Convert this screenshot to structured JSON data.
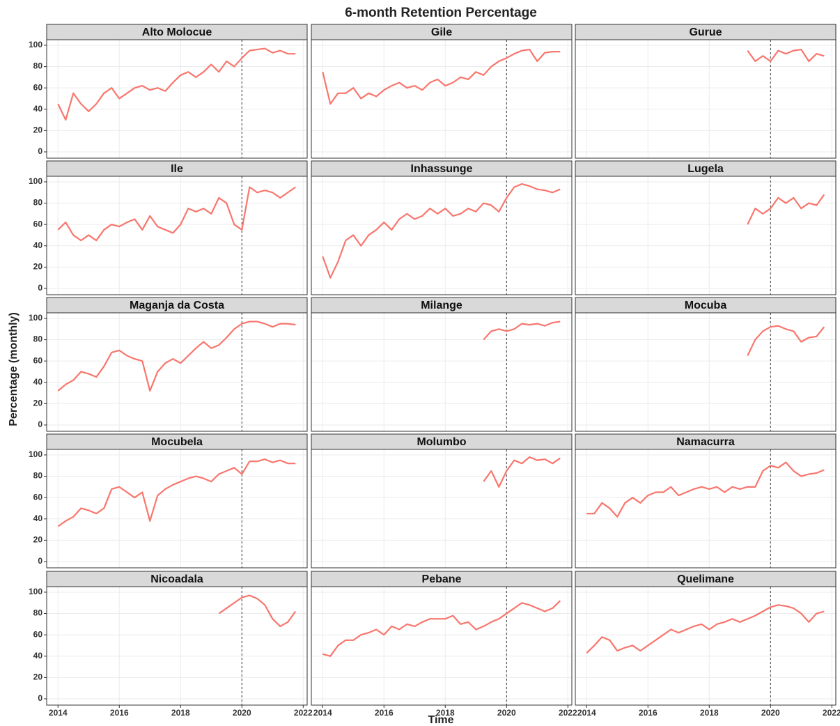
{
  "title": "6-month Retention Percentage",
  "x_label": "Time",
  "y_label": "Percentage (monthly)",
  "chart_data": [
    {
      "type": "line",
      "title": "Alto Molocue",
      "x": [
        2014,
        2014.25,
        2014.5,
        2014.75,
        2015,
        2015.25,
        2015.5,
        2015.75,
        2016,
        2016.25,
        2016.5,
        2016.75,
        2017,
        2017.25,
        2017.5,
        2017.75,
        2018,
        2018.25,
        2018.5,
        2018.75,
        2019,
        2019.25,
        2019.5,
        2019.75,
        2020,
        2020.25,
        2020.5,
        2020.75,
        2021,
        2021.25,
        2021.5,
        2021.75
      ],
      "values": [
        45,
        30,
        55,
        45,
        38,
        45,
        55,
        60,
        50,
        55,
        60,
        62,
        58,
        60,
        57,
        65,
        72,
        75,
        70,
        75,
        82,
        75,
        85,
        80,
        88,
        95,
        96,
        97,
        93,
        95,
        92,
        92
      ],
      "color": "#f8766d",
      "xlim": [
        2013.63,
        2022.13
      ],
      "ylim": [
        -5.9,
        105.2
      ],
      "xticks": [
        2014,
        2016,
        2018,
        2020,
        2022
      ],
      "yticks": [
        0,
        20,
        40,
        60,
        80,
        100
      ],
      "vline": 2020
    },
    {
      "type": "line",
      "title": "Gile",
      "x": [
        2014,
        2014.25,
        2014.5,
        2014.75,
        2015,
        2015.25,
        2015.5,
        2015.75,
        2016,
        2016.25,
        2016.5,
        2016.75,
        2017,
        2017.25,
        2017.5,
        2017.75,
        2018,
        2018.25,
        2018.5,
        2018.75,
        2019,
        2019.25,
        2019.5,
        2019.75,
        2020,
        2020.25,
        2020.5,
        2020.75,
        2021,
        2021.25,
        2021.5,
        2021.75
      ],
      "values": [
        75,
        45,
        55,
        55,
        60,
        50,
        55,
        52,
        58,
        62,
        65,
        60,
        62,
        58,
        65,
        68,
        62,
        65,
        70,
        68,
        75,
        72,
        80,
        85,
        88,
        92,
        95,
        96,
        85,
        93,
        94,
        94
      ],
      "color": "#f8766d",
      "xlim": [
        2013.63,
        2022.13
      ],
      "ylim": [
        -5.9,
        105.2
      ],
      "xticks": [
        2014,
        2016,
        2018,
        2020,
        2022
      ],
      "yticks": [
        0,
        20,
        40,
        60,
        80,
        100
      ],
      "vline": 2020
    },
    {
      "type": "line",
      "title": "Gurue",
      "x": [
        2019.25,
        2019.5,
        2019.75,
        2020,
        2020.25,
        2020.5,
        2020.75,
        2021,
        2021.25,
        2021.5,
        2021.75
      ],
      "values": [
        95,
        85,
        90,
        85,
        95,
        92,
        95,
        96,
        85,
        92,
        90
      ],
      "color": "#f8766d",
      "xlim": [
        2013.63,
        2022.13
      ],
      "ylim": [
        -5.9,
        105.2
      ],
      "xticks": [
        2014,
        2016,
        2018,
        2020,
        2022
      ],
      "yticks": [
        0,
        20,
        40,
        60,
        80,
        100
      ],
      "vline": 2020
    },
    {
      "type": "line",
      "title": "Ile",
      "x": [
        2014,
        2014.25,
        2014.5,
        2014.75,
        2015,
        2015.25,
        2015.5,
        2015.75,
        2016,
        2016.25,
        2016.5,
        2016.75,
        2017,
        2017.25,
        2017.5,
        2017.75,
        2018,
        2018.25,
        2018.5,
        2018.75,
        2019,
        2019.25,
        2019.5,
        2019.75,
        2020,
        2020.25,
        2020.5,
        2020.75,
        2021,
        2021.25,
        2021.5,
        2021.75
      ],
      "values": [
        55,
        62,
        50,
        45,
        50,
        45,
        55,
        60,
        58,
        62,
        65,
        55,
        68,
        58,
        55,
        52,
        60,
        75,
        72,
        75,
        70,
        85,
        80,
        60,
        55,
        95,
        90,
        92,
        90,
        85,
        90,
        95
      ],
      "color": "#f8766d",
      "xlim": [
        2013.63,
        2022.13
      ],
      "ylim": [
        -5.9,
        105.2
      ],
      "xticks": [
        2014,
        2016,
        2018,
        2020,
        2022
      ],
      "yticks": [
        0,
        20,
        40,
        60,
        80,
        100
      ],
      "vline": 2020
    },
    {
      "type": "line",
      "title": "Inhassunge",
      "x": [
        2014,
        2014.25,
        2014.5,
        2014.75,
        2015,
        2015.25,
        2015.5,
        2015.75,
        2016,
        2016.25,
        2016.5,
        2016.75,
        2017,
        2017.25,
        2017.5,
        2017.75,
        2018,
        2018.25,
        2018.5,
        2018.75,
        2019,
        2019.25,
        2019.5,
        2019.75,
        2020,
        2020.25,
        2020.5,
        2020.75,
        2021,
        2021.25,
        2021.5,
        2021.75
      ],
      "values": [
        30,
        10,
        25,
        45,
        50,
        40,
        50,
        55,
        62,
        55,
        65,
        70,
        65,
        68,
        75,
        70,
        75,
        68,
        70,
        75,
        72,
        80,
        78,
        72,
        85,
        95,
        98,
        96,
        93,
        92,
        90,
        93
      ],
      "color": "#f8766d",
      "xlim": [
        2013.63,
        2022.13
      ],
      "ylim": [
        -5.9,
        105.2
      ],
      "xticks": [
        2014,
        2016,
        2018,
        2020,
        2022
      ],
      "yticks": [
        0,
        20,
        40,
        60,
        80,
        100
      ],
      "vline": 2020
    },
    {
      "type": "line",
      "title": "Lugela",
      "x": [
        2019.25,
        2019.5,
        2019.75,
        2020,
        2020.25,
        2020.5,
        2020.75,
        2021,
        2021.25,
        2021.5,
        2021.75
      ],
      "values": [
        60,
        75,
        70,
        75,
        85,
        80,
        85,
        75,
        80,
        78,
        88
      ],
      "color": "#f8766d",
      "xlim": [
        2013.63,
        2022.13
      ],
      "ylim": [
        -5.9,
        105.2
      ],
      "xticks": [
        2014,
        2016,
        2018,
        2020,
        2022
      ],
      "yticks": [
        0,
        20,
        40,
        60,
        80,
        100
      ],
      "vline": 2020
    },
    {
      "type": "line",
      "title": "Maganja da Costa",
      "x": [
        2014,
        2014.25,
        2014.5,
        2014.75,
        2015,
        2015.25,
        2015.5,
        2015.75,
        2016,
        2016.25,
        2016.5,
        2016.75,
        2017,
        2017.25,
        2017.5,
        2017.75,
        2018,
        2018.25,
        2018.5,
        2018.75,
        2019,
        2019.25,
        2019.5,
        2019.75,
        2020,
        2020.25,
        2020.5,
        2020.75,
        2021,
        2021.25,
        2021.5,
        2021.75
      ],
      "values": [
        32,
        38,
        42,
        50,
        48,
        45,
        55,
        68,
        70,
        65,
        62,
        60,
        32,
        50,
        58,
        62,
        58,
        65,
        72,
        78,
        72,
        75,
        82,
        90,
        95,
        97,
        97,
        95,
        92,
        95,
        95,
        94
      ],
      "color": "#f8766d",
      "xlim": [
        2013.63,
        2022.13
      ],
      "ylim": [
        -5.9,
        105.2
      ],
      "xticks": [
        2014,
        2016,
        2018,
        2020,
        2022
      ],
      "yticks": [
        0,
        20,
        40,
        60,
        80,
        100
      ],
      "vline": 2020
    },
    {
      "type": "line",
      "title": "Milange",
      "x": [
        2019.25,
        2019.5,
        2019.75,
        2020,
        2020.25,
        2020.5,
        2020.75,
        2021,
        2021.25,
        2021.5,
        2021.75
      ],
      "values": [
        80,
        88,
        90,
        88,
        90,
        95,
        94,
        95,
        93,
        96,
        97
      ],
      "color": "#f8766d",
      "xlim": [
        2013.63,
        2022.13
      ],
      "ylim": [
        -5.9,
        105.2
      ],
      "xticks": [
        2014,
        2016,
        2018,
        2020,
        2022
      ],
      "yticks": [
        0,
        20,
        40,
        60,
        80,
        100
      ],
      "vline": 2020
    },
    {
      "type": "line",
      "title": "Mocuba",
      "x": [
        2019.25,
        2019.5,
        2019.75,
        2020,
        2020.25,
        2020.5,
        2020.75,
        2021,
        2021.25,
        2021.5,
        2021.75
      ],
      "values": [
        65,
        80,
        88,
        92,
        93,
        90,
        88,
        78,
        82,
        83,
        92
      ],
      "color": "#f8766d",
      "xlim": [
        2013.63,
        2022.13
      ],
      "ylim": [
        -5.9,
        105.2
      ],
      "xticks": [
        2014,
        2016,
        2018,
        2020,
        2022
      ],
      "yticks": [
        0,
        20,
        40,
        60,
        80,
        100
      ],
      "vline": 2020
    },
    {
      "type": "line",
      "title": "Mocubela",
      "x": [
        2014,
        2014.25,
        2014.5,
        2014.75,
        2015,
        2015.25,
        2015.5,
        2015.75,
        2016,
        2016.25,
        2016.5,
        2016.75,
        2017,
        2017.25,
        2017.5,
        2017.75,
        2018,
        2018.25,
        2018.5,
        2018.75,
        2019,
        2019.25,
        2019.5,
        2019.75,
        2020,
        2020.25,
        2020.5,
        2020.75,
        2021,
        2021.25,
        2021.5,
        2021.75
      ],
      "values": [
        33,
        38,
        42,
        50,
        48,
        45,
        50,
        68,
        70,
        65,
        60,
        65,
        38,
        62,
        68,
        72,
        75,
        78,
        80,
        78,
        75,
        82,
        85,
        88,
        82,
        94,
        94,
        96,
        93,
        95,
        92,
        92
      ],
      "color": "#f8766d",
      "xlim": [
        2013.63,
        2022.13
      ],
      "ylim": [
        -5.9,
        105.2
      ],
      "xticks": [
        2014,
        2016,
        2018,
        2020,
        2022
      ],
      "yticks": [
        0,
        20,
        40,
        60,
        80,
        100
      ],
      "vline": 2020
    },
    {
      "type": "line",
      "title": "Molumbo",
      "x": [
        2019.25,
        2019.5,
        2019.75,
        2020,
        2020.25,
        2020.5,
        2020.75,
        2021,
        2021.25,
        2021.5,
        2021.75
      ],
      "values": [
        75,
        85,
        70,
        85,
        95,
        92,
        98,
        95,
        96,
        92,
        97
      ],
      "color": "#f8766d",
      "xlim": [
        2013.63,
        2022.13
      ],
      "ylim": [
        -5.9,
        105.2
      ],
      "xticks": [
        2014,
        2016,
        2018,
        2020,
        2022
      ],
      "yticks": [
        0,
        20,
        40,
        60,
        80,
        100
      ],
      "vline": 2020
    },
    {
      "type": "line",
      "title": "Namacurra",
      "x": [
        2014,
        2014.25,
        2014.5,
        2014.75,
        2015,
        2015.25,
        2015.5,
        2015.75,
        2016,
        2016.25,
        2016.5,
        2016.75,
        2017,
        2017.25,
        2017.5,
        2017.75,
        2018,
        2018.25,
        2018.5,
        2018.75,
        2019,
        2019.25,
        2019.5,
        2019.75,
        2020,
        2020.25,
        2020.5,
        2020.75,
        2021,
        2021.25,
        2021.5,
        2021.75
      ],
      "values": [
        45,
        45,
        55,
        50,
        42,
        55,
        60,
        55,
        62,
        65,
        65,
        70,
        62,
        65,
        68,
        70,
        68,
        70,
        65,
        70,
        68,
        70,
        70,
        85,
        90,
        88,
        93,
        85,
        80,
        82,
        83,
        86
      ],
      "color": "#f8766d",
      "xlim": [
        2013.63,
        2022.13
      ],
      "ylim": [
        -5.9,
        105.2
      ],
      "xticks": [
        2014,
        2016,
        2018,
        2020,
        2022
      ],
      "yticks": [
        0,
        20,
        40,
        60,
        80,
        100
      ],
      "vline": 2020
    },
    {
      "type": "line",
      "title": "Nicoadala",
      "x": [
        2019.25,
        2019.5,
        2019.75,
        2020,
        2020.25,
        2020.5,
        2020.75,
        2021,
        2021.25,
        2021.5,
        2021.75
      ],
      "values": [
        80,
        85,
        90,
        95,
        97,
        94,
        88,
        75,
        68,
        72,
        82
      ],
      "color": "#f8766d",
      "xlim": [
        2013.63,
        2022.13
      ],
      "ylim": [
        -5.9,
        105.2
      ],
      "xticks": [
        2014,
        2016,
        2018,
        2020,
        2022
      ],
      "yticks": [
        0,
        20,
        40,
        60,
        80,
        100
      ],
      "vline": 2020
    },
    {
      "type": "line",
      "title": "Pebane",
      "x": [
        2014,
        2014.25,
        2014.5,
        2014.75,
        2015,
        2015.25,
        2015.5,
        2015.75,
        2016,
        2016.25,
        2016.5,
        2016.75,
        2017,
        2017.25,
        2017.5,
        2017.75,
        2018,
        2018.25,
        2018.5,
        2018.75,
        2019,
        2019.25,
        2019.5,
        2019.75,
        2020,
        2020.25,
        2020.5,
        2020.75,
        2021,
        2021.25,
        2021.5,
        2021.75
      ],
      "values": [
        42,
        40,
        50,
        55,
        55,
        60,
        62,
        65,
        60,
        68,
        65,
        70,
        68,
        72,
        75,
        75,
        75,
        78,
        70,
        72,
        65,
        68,
        72,
        75,
        80,
        85,
        90,
        88,
        85,
        82,
        85,
        92
      ],
      "color": "#f8766d",
      "xlim": [
        2013.63,
        2022.13
      ],
      "ylim": [
        -5.9,
        105.2
      ],
      "xticks": [
        2014,
        2016,
        2018,
        2020,
        2022
      ],
      "yticks": [
        0,
        20,
        40,
        60,
        80,
        100
      ],
      "vline": 2020
    },
    {
      "type": "line",
      "title": "Quelimane",
      "x": [
        2014,
        2014.25,
        2014.5,
        2014.75,
        2015,
        2015.25,
        2015.5,
        2015.75,
        2016,
        2016.25,
        2016.5,
        2016.75,
        2017,
        2017.25,
        2017.5,
        2017.75,
        2018,
        2018.25,
        2018.5,
        2018.75,
        2019,
        2019.25,
        2019.5,
        2019.75,
        2020,
        2020.25,
        2020.5,
        2020.75,
        2021,
        2021.25,
        2021.5,
        2021.75
      ],
      "values": [
        43,
        50,
        58,
        55,
        45,
        48,
        50,
        45,
        50,
        55,
        60,
        65,
        62,
        65,
        68,
        70,
        65,
        70,
        72,
        75,
        72,
        75,
        78,
        82,
        86,
        88,
        87,
        85,
        80,
        72,
        80,
        82
      ],
      "color": "#f8766d",
      "xlim": [
        2013.63,
        2022.13
      ],
      "ylim": [
        -5.9,
        105.2
      ],
      "xticks": [
        2014,
        2016,
        2018,
        2020,
        2022
      ],
      "yticks": [
        0,
        20,
        40,
        60,
        80,
        100
      ],
      "vline": 2020
    }
  ]
}
